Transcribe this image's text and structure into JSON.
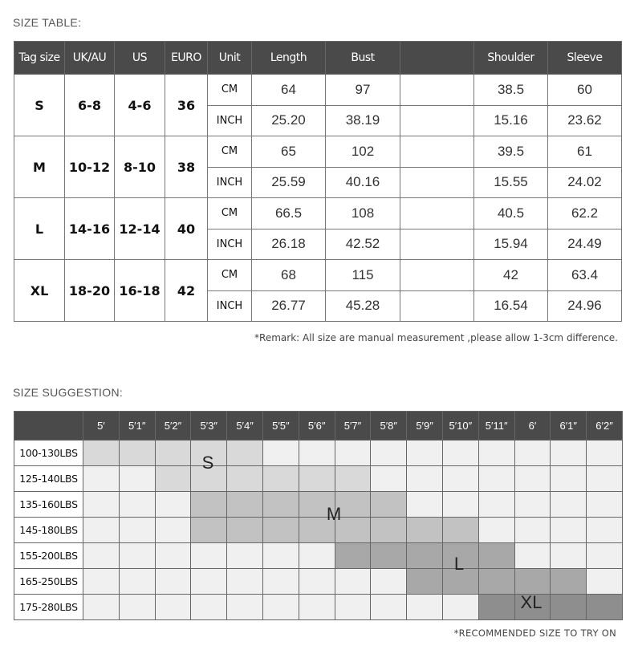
{
  "size_table": {
    "title": "SIZE TABLE:",
    "headers": [
      "Tag size",
      "UK/AU",
      "US",
      "EURO",
      "Unit",
      "Length",
      "Bust",
      "",
      "Shoulder",
      "Sleeve"
    ],
    "rows": [
      {
        "tag": "S",
        "uk": "6-8",
        "us": "4-6",
        "euro": "36",
        "cm": [
          "64",
          "97",
          "",
          "38.5",
          "60"
        ],
        "inch": [
          "25.20",
          "38.19",
          "",
          "15.16",
          "23.62"
        ]
      },
      {
        "tag": "M",
        "uk": "10-12",
        "us": "8-10",
        "euro": "38",
        "cm": [
          "65",
          "102",
          "",
          "39.5",
          "61"
        ],
        "inch": [
          "25.59",
          "40.16",
          "",
          "15.55",
          "24.02"
        ]
      },
      {
        "tag": "L",
        "uk": "14-16",
        "us": "12-14",
        "euro": "40",
        "cm": [
          "66.5",
          "108",
          "",
          "40.5",
          "62.2"
        ],
        "inch": [
          "26.18",
          "42.52",
          "",
          "15.94",
          "24.49"
        ]
      },
      {
        "tag": "XL",
        "uk": "18-20",
        "us": "16-18",
        "euro": "42",
        "cm": [
          "68",
          "115",
          "",
          "42",
          "63.4"
        ],
        "inch": [
          "26.77",
          "45.28",
          "",
          "16.54",
          "24.96"
        ]
      }
    ],
    "unit_cm": "CM",
    "unit_inch": "INCH",
    "remark": "*Remark: All size are manual measurement ,please allow 1-3cm difference."
  },
  "size_suggestion": {
    "title": "SIZE SUGGESTION:",
    "heights": [
      "5′",
      "5′1″",
      "5′2″",
      "5′3″",
      "5′4″",
      "5′5″",
      "5′6″",
      "5′7″",
      "5′8″",
      "5′9″",
      "5′10″",
      "5′11″",
      "6′",
      "6′1″",
      "6′2″"
    ],
    "weights": [
      "100-130LBS",
      "125-140LBS",
      "135-160LBS",
      "145-180LBS",
      "155-200LBS",
      "165-250LBS",
      "175-280LBS"
    ],
    "shading": [
      [
        1,
        1,
        1,
        1,
        1,
        0,
        0,
        0,
        0,
        0,
        0,
        0,
        0,
        0,
        0
      ],
      [
        0,
        0,
        1,
        1,
        1,
        1,
        1,
        1,
        0,
        0,
        0,
        0,
        0,
        0,
        0
      ],
      [
        0,
        0,
        0,
        2,
        2,
        2,
        2,
        2,
        2,
        0,
        0,
        0,
        0,
        0,
        0
      ],
      [
        0,
        0,
        0,
        2,
        2,
        2,
        2,
        2,
        2,
        2,
        2,
        0,
        0,
        0,
        0
      ],
      [
        0,
        0,
        0,
        0,
        0,
        0,
        0,
        3,
        3,
        3,
        3,
        3,
        0,
        0,
        0
      ],
      [
        0,
        0,
        0,
        0,
        0,
        0,
        0,
        0,
        0,
        3,
        3,
        3,
        3,
        3,
        0
      ],
      [
        0,
        0,
        0,
        0,
        0,
        0,
        0,
        0,
        0,
        0,
        0,
        4,
        4,
        4,
        4
      ]
    ],
    "colors": {
      "header": "#4a4a4a",
      "empty": "#f0f0f0",
      "S": "#d9d9d9",
      "M": "#c2c2c2",
      "L": "#a8a8a8",
      "XL": "#8e8e8e"
    },
    "size_labels": [
      "S",
      "M",
      "L",
      "XL"
    ],
    "note": "*RECOMMENDED SIZE TO TRY ON"
  }
}
